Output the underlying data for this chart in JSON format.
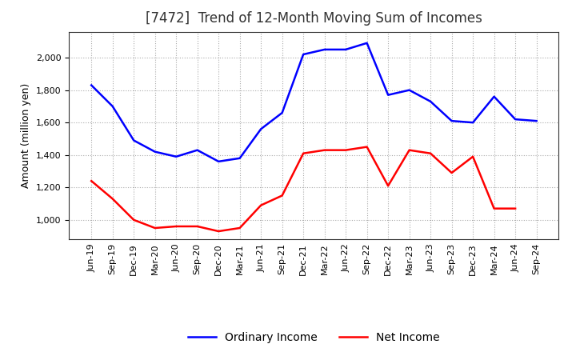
{
  "title": "[7472]  Trend of 12-Month Moving Sum of Incomes",
  "ylabel": "Amount (million yen)",
  "x_labels": [
    "Jun-19",
    "Sep-19",
    "Dec-19",
    "Mar-20",
    "Jun-20",
    "Sep-20",
    "Dec-20",
    "Mar-21",
    "Jun-21",
    "Sep-21",
    "Dec-21",
    "Mar-22",
    "Jun-22",
    "Sep-22",
    "Dec-22",
    "Mar-23",
    "Jun-23",
    "Sep-23",
    "Dec-23",
    "Mar-24",
    "Jun-24",
    "Sep-24"
  ],
  "ordinary_income": [
    1830,
    1700,
    1490,
    1420,
    1390,
    1430,
    1360,
    1380,
    1560,
    1660,
    2020,
    2050,
    2050,
    2090,
    1770,
    1800,
    1730,
    1610,
    1600,
    1760,
    1620,
    1610
  ],
  "net_income": [
    1240,
    1130,
    1000,
    950,
    960,
    960,
    930,
    950,
    1090,
    1150,
    1410,
    1430,
    1430,
    1450,
    1210,
    1430,
    1410,
    1290,
    1390,
    1070,
    1070,
    null
  ],
  "ordinary_color": "#0000ff",
  "net_color": "#ff0000",
  "background_color": "#ffffff",
  "plot_bg_color": "#ffffff",
  "grid_color": "#aaaaaa",
  "ylim_min": 880,
  "ylim_max": 2160,
  "yticks": [
    1000,
    1200,
    1400,
    1600,
    1800,
    2000
  ],
  "title_fontsize": 12,
  "label_fontsize": 9,
  "tick_fontsize": 8,
  "legend_labels": [
    "Ordinary Income",
    "Net Income"
  ],
  "line_width": 1.8
}
